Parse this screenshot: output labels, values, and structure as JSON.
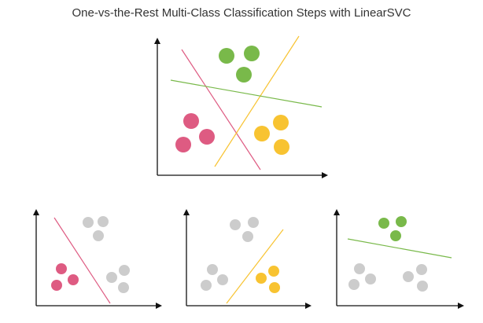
{
  "title": "One-vs-the-Rest Multi-Class Classification Steps with LinearSVC",
  "colors": {
    "red": "#de5b82",
    "green": "#79b94a",
    "yellow": "#f8c331",
    "gray": "#cccccc",
    "axis": "#111111"
  },
  "panels": [
    {
      "id": "main",
      "points": [
        {
          "cls": "green",
          "c": "green"
        },
        {
          "cls": "green",
          "c": "green"
        },
        {
          "cls": "green",
          "c": "green"
        },
        {
          "cls": "red",
          "c": "red"
        },
        {
          "cls": "red",
          "c": "red"
        },
        {
          "cls": "red",
          "c": "red"
        },
        {
          "cls": "yellow",
          "c": "yellow"
        },
        {
          "cls": "yellow",
          "c": "yellow"
        },
        {
          "cls": "yellow",
          "c": "yellow"
        }
      ],
      "lines": [
        "red",
        "yellow",
        "green"
      ]
    },
    {
      "id": "red-vs-rest",
      "points": [
        {
          "cls": "green",
          "c": "gray"
        },
        {
          "cls": "green",
          "c": "gray"
        },
        {
          "cls": "green",
          "c": "gray"
        },
        {
          "cls": "red",
          "c": "red"
        },
        {
          "cls": "red",
          "c": "red"
        },
        {
          "cls": "red",
          "c": "red"
        },
        {
          "cls": "yellow",
          "c": "gray"
        },
        {
          "cls": "yellow",
          "c": "gray"
        },
        {
          "cls": "yellow",
          "c": "gray"
        }
      ],
      "lines": [
        "red"
      ]
    },
    {
      "id": "yellow-vs-rest",
      "points": [
        {
          "cls": "green",
          "c": "gray"
        },
        {
          "cls": "green",
          "c": "gray"
        },
        {
          "cls": "green",
          "c": "gray"
        },
        {
          "cls": "red",
          "c": "gray"
        },
        {
          "cls": "red",
          "c": "gray"
        },
        {
          "cls": "red",
          "c": "gray"
        },
        {
          "cls": "yellow",
          "c": "yellow"
        },
        {
          "cls": "yellow",
          "c": "yellow"
        },
        {
          "cls": "yellow",
          "c": "yellow"
        }
      ],
      "lines": [
        "yellow"
      ]
    },
    {
      "id": "green-vs-rest",
      "points": [
        {
          "cls": "green",
          "c": "green"
        },
        {
          "cls": "green",
          "c": "green"
        },
        {
          "cls": "green",
          "c": "green"
        },
        {
          "cls": "red",
          "c": "gray"
        },
        {
          "cls": "red",
          "c": "gray"
        },
        {
          "cls": "red",
          "c": "gray"
        },
        {
          "cls": "yellow",
          "c": "gray"
        },
        {
          "cls": "yellow",
          "c": "gray"
        },
        {
          "cls": "yellow",
          "c": "gray"
        }
      ],
      "lines": [
        "green"
      ]
    }
  ]
}
